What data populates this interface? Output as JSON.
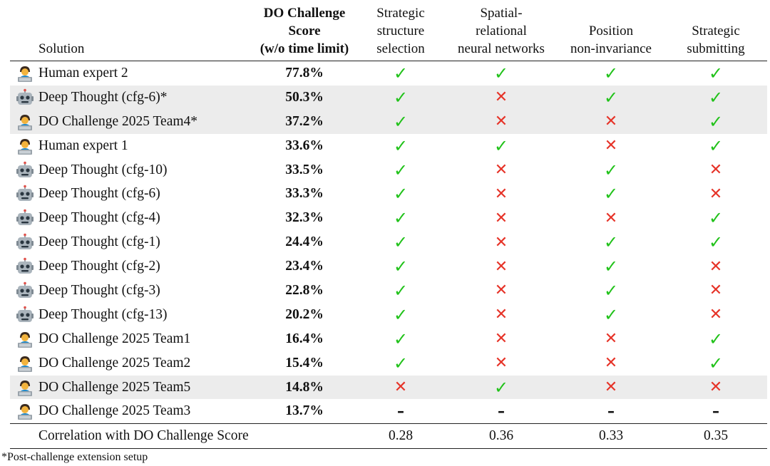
{
  "header": {
    "solution": "Solution",
    "score_lines": [
      "DO Challenge",
      "Score",
      "(w/o time limit)"
    ],
    "features": [
      [
        "Strategic",
        "structure",
        "selection"
      ],
      [
        "Spatial-",
        "relational",
        "neural networks"
      ],
      [
        "",
        "Position",
        "non-invariance"
      ],
      [
        "",
        "Strategic",
        "submitting"
      ]
    ]
  },
  "icons": {
    "human": "person-at-laptop-icon",
    "ai": "robot-face-icon",
    "yes": "check-mark-icon",
    "no": "cross-mark-icon",
    "na": "dash-icon"
  },
  "colors": {
    "check": "#21c21a",
    "cross": "#e63328",
    "row_highlight": "#ececec"
  },
  "marks": {
    "yes": "✓",
    "no": "✕",
    "na": "–"
  },
  "rows": [
    {
      "type": "human",
      "name": "Human expert 2",
      "score": "77.8%",
      "marks": [
        "yes",
        "yes",
        "yes",
        "yes"
      ],
      "highlight": false
    },
    {
      "type": "ai",
      "name": "Deep Thought (cfg-6)*",
      "score": "50.3%",
      "marks": [
        "yes",
        "no",
        "yes",
        "yes"
      ],
      "highlight": true
    },
    {
      "type": "human",
      "name": "DO Challenge 2025 Team4*",
      "score": "37.2%",
      "marks": [
        "yes",
        "no",
        "no",
        "yes"
      ],
      "highlight": true
    },
    {
      "type": "human",
      "name": "Human expert 1",
      "score": "33.6%",
      "marks": [
        "yes",
        "yes",
        "no",
        "yes"
      ],
      "highlight": false
    },
    {
      "type": "ai",
      "name": "Deep Thought (cfg-10)",
      "score": "33.5%",
      "marks": [
        "yes",
        "no",
        "yes",
        "no"
      ],
      "highlight": false
    },
    {
      "type": "ai",
      "name": "Deep Thought (cfg-6)",
      "score": "33.3%",
      "marks": [
        "yes",
        "no",
        "yes",
        "no"
      ],
      "highlight": false
    },
    {
      "type": "ai",
      "name": "Deep Thought (cfg-4)",
      "score": "32.3%",
      "marks": [
        "yes",
        "no",
        "no",
        "yes"
      ],
      "highlight": false
    },
    {
      "type": "ai",
      "name": "Deep Thought (cfg-1)",
      "score": "24.4%",
      "marks": [
        "yes",
        "no",
        "yes",
        "yes"
      ],
      "highlight": false
    },
    {
      "type": "ai",
      "name": "Deep Thought (cfg-2)",
      "score": "23.4%",
      "marks": [
        "yes",
        "no",
        "yes",
        "no"
      ],
      "highlight": false
    },
    {
      "type": "ai",
      "name": "Deep Thought (cfg-3)",
      "score": "22.8%",
      "marks": [
        "yes",
        "no",
        "yes",
        "no"
      ],
      "highlight": false
    },
    {
      "type": "ai",
      "name": "Deep Thought (cfg-13)",
      "score": "20.2%",
      "marks": [
        "yes",
        "no",
        "yes",
        "no"
      ],
      "highlight": false
    },
    {
      "type": "human",
      "name": "DO Challenge 2025 Team1",
      "score": "16.4%",
      "marks": [
        "yes",
        "no",
        "no",
        "yes"
      ],
      "highlight": false
    },
    {
      "type": "human",
      "name": "DO Challenge 2025 Team2",
      "score": "15.4%",
      "marks": [
        "yes",
        "no",
        "no",
        "yes"
      ],
      "highlight": false
    },
    {
      "type": "human",
      "name": "DO Challenge 2025 Team5",
      "score": "14.8%",
      "marks": [
        "no",
        "yes",
        "no",
        "no"
      ],
      "highlight": true
    },
    {
      "type": "human",
      "name": "DO Challenge 2025 Team3",
      "score": "13.7%",
      "marks": [
        "na",
        "na",
        "na",
        "na"
      ],
      "highlight": false
    }
  ],
  "correlation": {
    "label": "Correlation with DO Challenge Score",
    "values": [
      "0.28",
      "0.36",
      "0.33",
      "0.35"
    ]
  },
  "footnote": "*Post-challenge extension setup"
}
